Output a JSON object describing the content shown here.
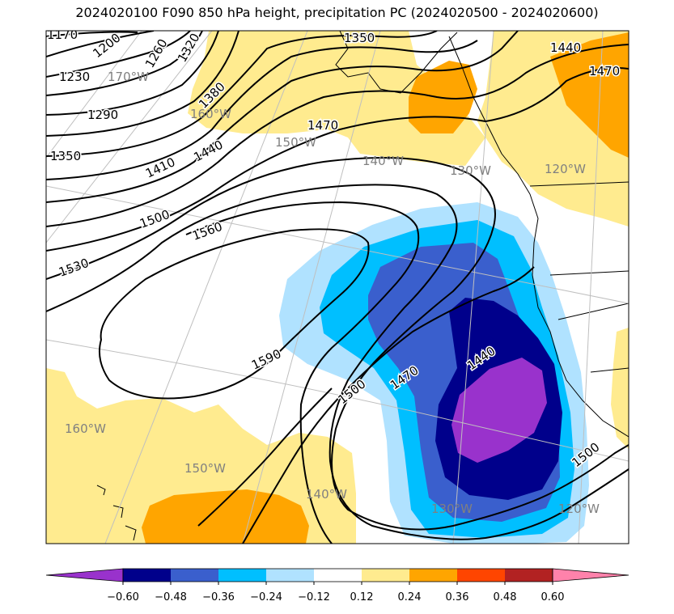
{
  "title": "2024020100 F090 850 hPa height, precipitation PC (2024020500 - 2024020600)",
  "colors": {
    "neg_060": "#9932cc",
    "neg_048": "#00008b",
    "neg_036": "#3a5fcd",
    "neg_024": "#00bfff",
    "neg_012": "#b0e2ff",
    "neutral": "#ffffff",
    "pos_012": "#ffeb8f",
    "pos_024": "#ffa500",
    "pos_036": "#ff4500",
    "pos_048": "#b22222",
    "pos_060": "#ff82ab",
    "contour": "#000000",
    "graticule": "#bfbfbf",
    "graticule_label": "#808080"
  },
  "graticule_labels": {
    "lon_170w_top": "170°W",
    "lon_160w_top": "160°W",
    "lon_150w_top": "150°W",
    "lon_140w_top": "140°W",
    "lon_130w_top": "130°W",
    "lon_120w_top": "120°W",
    "lon_160w_bottom": "160°W",
    "lon_150w_bottom": "150°W",
    "lon_140w_bottom": "140°W",
    "lon_130w_bottom": "130°W",
    "lon_120w_bottom": "120°W"
  },
  "contour_labels": {
    "c1170": "1170",
    "c1200": "1200",
    "c1260": "1260",
    "c1320": "1320",
    "c1230": "1230",
    "c1290": "1290",
    "c1350_w": "1350",
    "c1350_n": "1350",
    "c1380": "1380",
    "c1410": "1410",
    "c1440_w": "1440",
    "c1440_ne": "1440",
    "c1440_e": "1440",
    "c1470_n": "1470",
    "c1470_ne": "1470",
    "c1470_e": "1470",
    "c1500_w": "1500",
    "c1500_c": "1500",
    "c1500_e": "1500",
    "c1530": "1530",
    "c1560": "1560",
    "c1590": "1590"
  },
  "colorbar": {
    "ticks": [
      "−0.60",
      "−0.48",
      "−0.36",
      "−0.24",
      "−0.12",
      "0.12",
      "0.24",
      "0.36",
      "0.48",
      "0.60"
    ]
  }
}
